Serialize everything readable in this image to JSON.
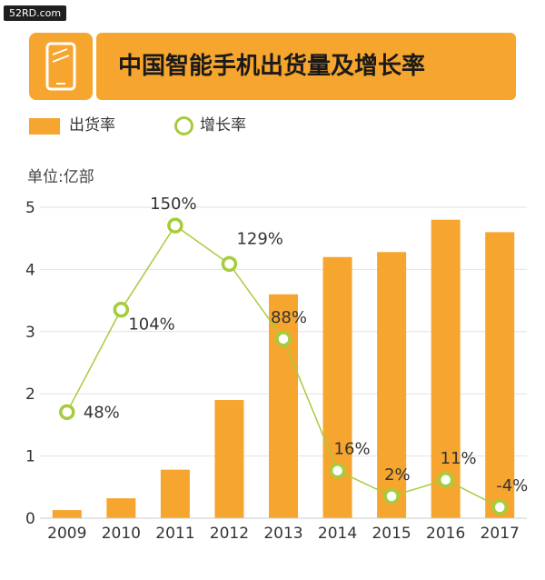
{
  "watermark": "52RD.com",
  "title": "中国智能手机出货量及增长率",
  "icon": "smartphone-icon",
  "unit": "单位:亿部",
  "legend": {
    "bar_label": "出货率",
    "line_label": "增长率"
  },
  "colors": {
    "bar": "#f6a52e",
    "line": "#a6cc3c",
    "grid": "#e2e2e2"
  },
  "chart_data": {
    "type": "bar",
    "categories": [
      "2009",
      "2010",
      "2011",
      "2012",
      "2013",
      "2014",
      "2015",
      "2016",
      "2017"
    ],
    "series": [
      {
        "name": "出货率",
        "type": "bar",
        "axis": "left",
        "values": [
          0.13,
          0.32,
          0.78,
          1.9,
          3.6,
          4.2,
          4.28,
          4.8,
          4.6
        ]
      },
      {
        "name": "增长率",
        "type": "line",
        "axis": "right",
        "values": [
          48,
          104,
          150,
          129,
          88,
          16,
          2,
          11,
          -4
        ],
        "labels": [
          "48%",
          "104%",
          "150%",
          "129%",
          "88%",
          "16%",
          "2%",
          "11%",
          "-4%"
        ]
      }
    ],
    "yticks": [
      "0",
      "1",
      "2",
      "3",
      "4",
      "5"
    ],
    "ylim": [
      0,
      5
    ],
    "y2lim": [
      -10,
      160
    ],
    "grid": true,
    "legend_position": "top-left"
  }
}
